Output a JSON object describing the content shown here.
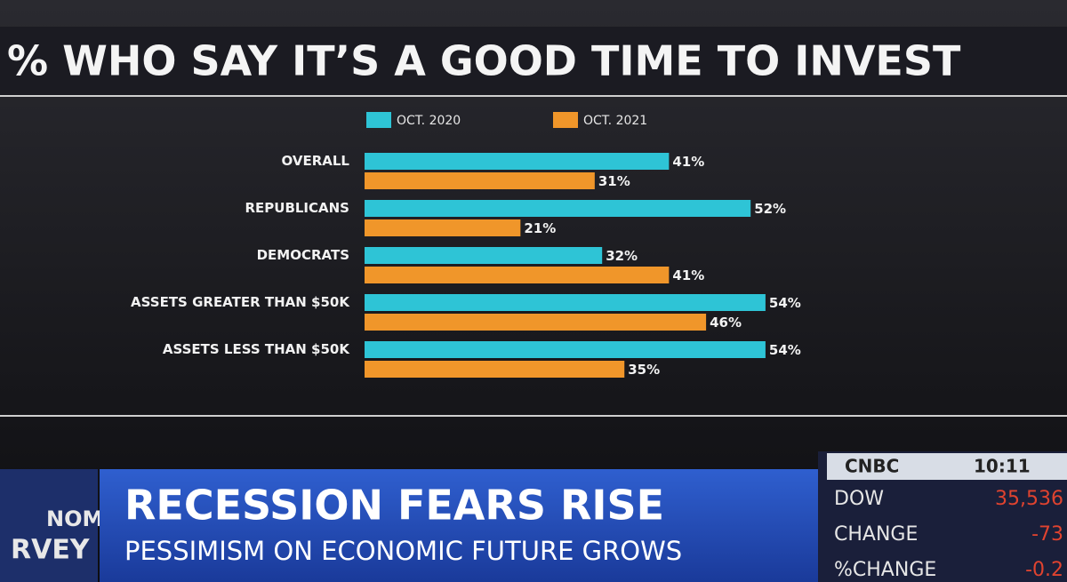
{
  "chart_data": {
    "type": "bar",
    "orientation": "horizontal",
    "title": "% WHO SAY IT’S A GOOD TIME TO INVEST",
    "categories": [
      "OVERALL",
      "REPUBLICANS",
      "DEMOCRATS",
      "ASSETS GREATER THAN $50K",
      "ASSETS LESS THAN $50K"
    ],
    "series": [
      {
        "name": "OCT. 2020",
        "color": "#2ec4d6",
        "values": [
          41,
          52,
          32,
          54,
          54
        ],
        "value_labels": [
          "41%",
          "52%",
          "32%",
          "54%",
          "54%"
        ]
      },
      {
        "name": "OCT. 2021",
        "color": "#f0962a",
        "values": [
          31,
          21,
          41,
          46,
          35
        ],
        "value_labels": [
          "31%",
          "21%",
          "41%",
          "46%",
          "35%"
        ]
      }
    ]
  },
  "lower_third": {
    "headline": "RECESSION FEARS RISE",
    "subheadline": "PESSIMISM ON ECONOMIC FUTURE GROWS",
    "bug": [
      "NOMIC",
      "RVEY"
    ]
  },
  "ticker": {
    "network": "CNBC",
    "time": "10:11",
    "rows": [
      [
        "DOW",
        "35,536"
      ],
      [
        "CHANGE",
        "-73"
      ],
      [
        "%CHANGE",
        "-0.2"
      ]
    ]
  }
}
